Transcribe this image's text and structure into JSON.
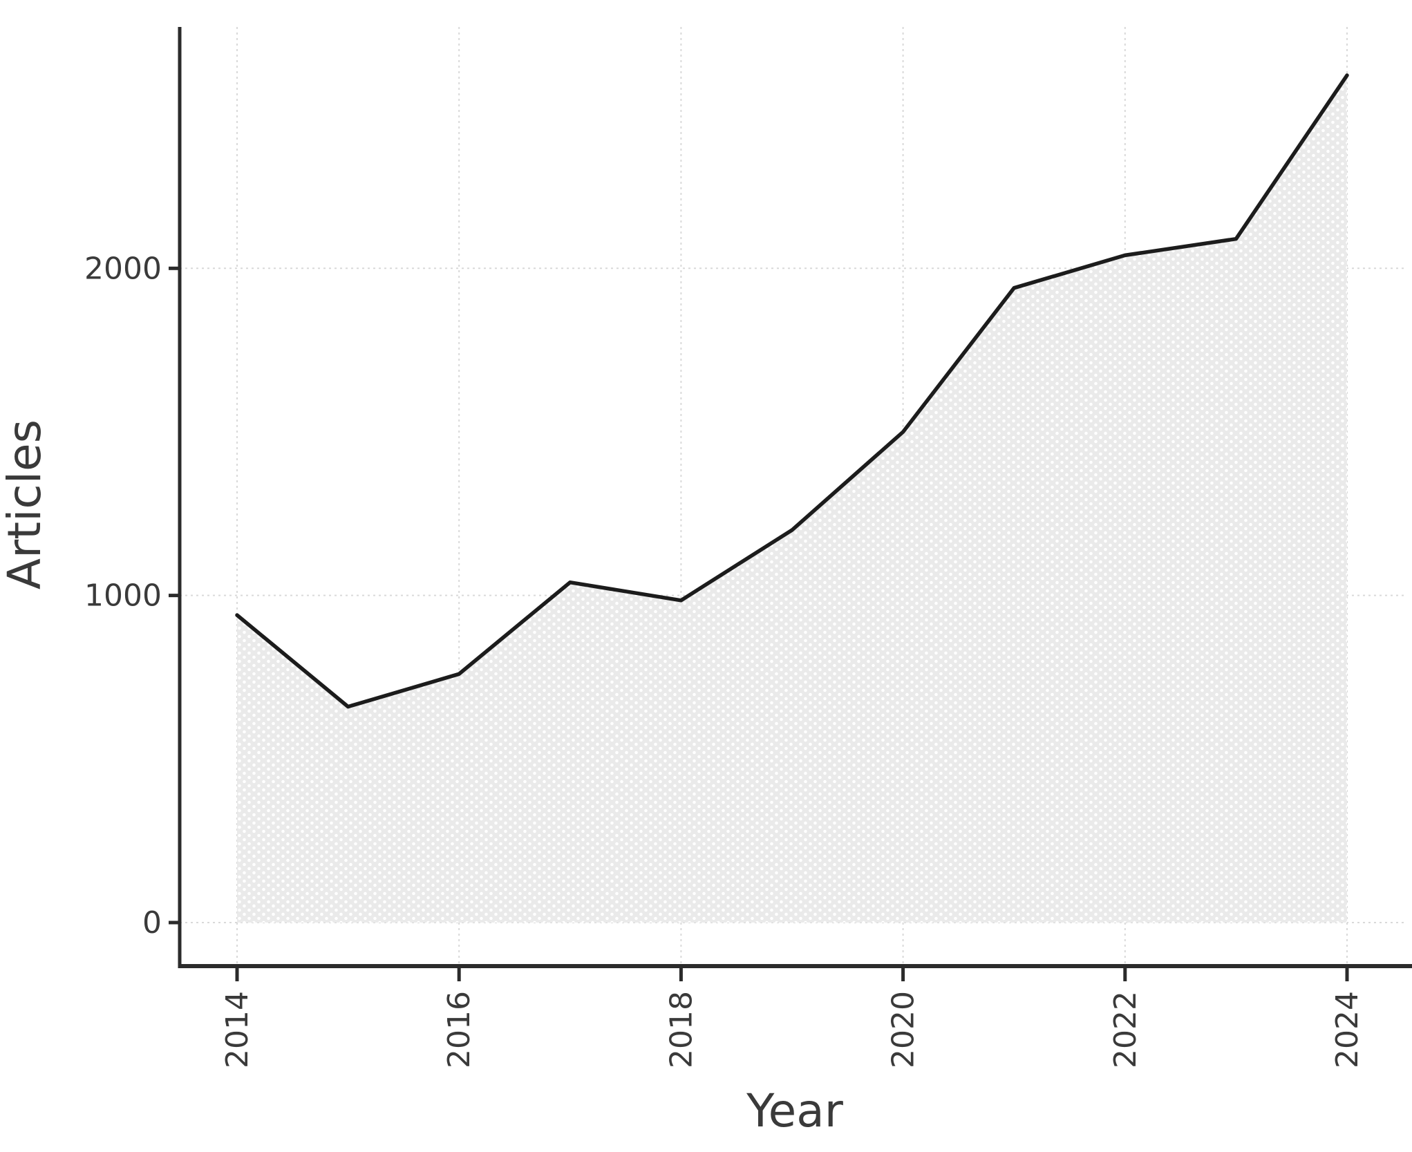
{
  "chart_data": {
    "type": "area",
    "title": "",
    "xlabel": "Year",
    "ylabel": "Articles",
    "x": [
      2014,
      2015,
      2016,
      2017,
      2018,
      2019,
      2020,
      2021,
      2022,
      2023,
      2024
    ],
    "values": [
      940,
      660,
      760,
      1040,
      985,
      1200,
      1500,
      1940,
      2040,
      2090,
      2590
    ],
    "xticks": [
      2014,
      2016,
      2018,
      2020,
      2022,
      2024
    ],
    "yticks": [
      0,
      1000,
      2000
    ],
    "xlim": [
      2013.5,
      2024.6
    ],
    "ylim": [
      0,
      2740
    ],
    "grid": true,
    "legend": false,
    "colors": {
      "background": "#ffffff",
      "line": "#1c1c1c",
      "fill": "#eaeaea",
      "fill_dots": "#ffffff",
      "grid": "#d9d9d9",
      "spine": "#2b2b2b",
      "tick": "#2b2b2b",
      "text": "#3a3a3a"
    }
  }
}
